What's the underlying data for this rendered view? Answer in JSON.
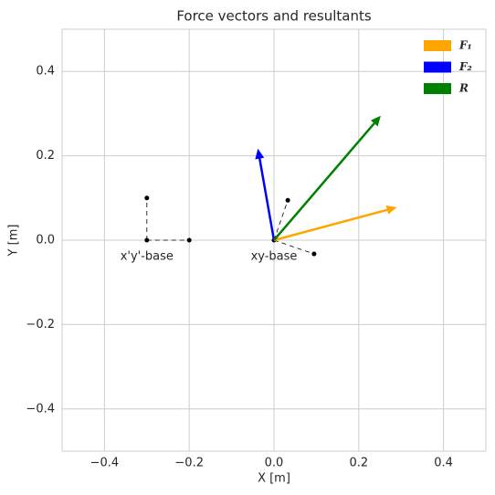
{
  "chart_data": {
    "type": "vector",
    "title": "Force vectors and resultants",
    "x_label": "X [m]",
    "y_label": "Y [m]",
    "xlim": [
      -0.5,
      0.5
    ],
    "ylim": [
      -0.5,
      0.5
    ],
    "xticks": [
      {
        "value": -0.4,
        "label": "−0.4"
      },
      {
        "value": -0.2,
        "label": "−0.2"
      },
      {
        "value": 0,
        "label": "0.0"
      },
      0.2,
      0.4
    ],
    "yticks": [
      {
        "value": -0.4,
        "label": "−0.4"
      },
      {
        "value": -0.2,
        "label": "−0.2"
      },
      {
        "value": 0,
        "label": "0.0"
      },
      0.2,
      0.4
    ],
    "grid": true,
    "legend": "upper right",
    "vectors": [
      {
        "name": "F₁",
        "color": "#ffa500",
        "x": 0,
        "y": 0,
        "u": 0.29,
        "v": 0.078
      },
      {
        "name": "F₂",
        "color": "#0000ff",
        "x": 0,
        "y": 0,
        "u": -0.038,
        "v": 0.217
      },
      {
        "name": "R",
        "color": "#008000",
        "x": 0,
        "y": 0,
        "u": 0.252,
        "v": 0.295
      }
    ],
    "bases": [
      {
        "label": "xy-base",
        "origin": [
          0,
          0
        ],
        "x_end": [
          0.0946,
          -0.0326
        ],
        "y_end": [
          0.0326,
          0.0946
        ]
      },
      {
        "label": "x'y'-base",
        "origin": [
          -0.3,
          0
        ],
        "x_end": [
          -0.2,
          0
        ],
        "y_end": [
          -0.3,
          0.1
        ]
      }
    ]
  }
}
